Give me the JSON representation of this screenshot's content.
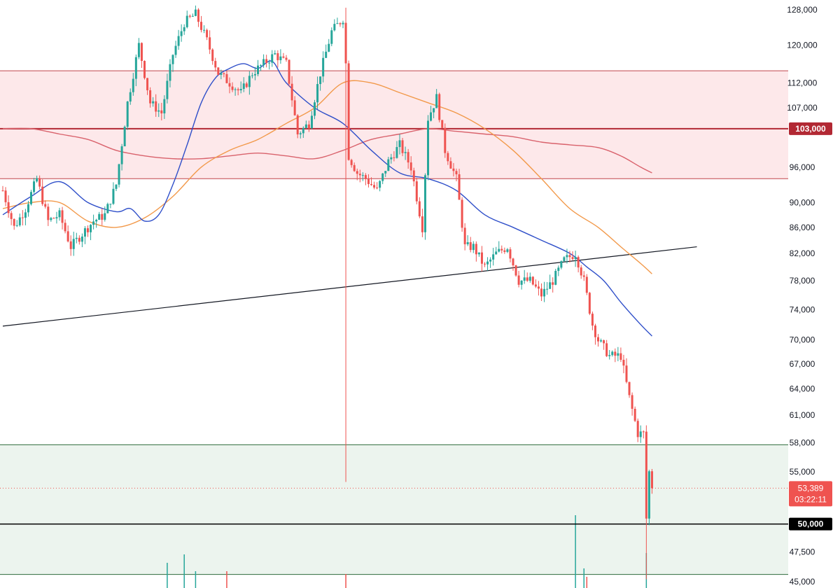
{
  "chart_data": {
    "type": "candlestick",
    "colors": {
      "up": "#26a69a",
      "down": "#ef5350",
      "ma_fast": "#2f4fc9",
      "ma_mid": "#f2994a",
      "ma_slow": "#d9626c",
      "trendline": "#131722",
      "resistance_zone": "#fde8ea",
      "support_zone": "#ecf4ee",
      "resistance_level": "#b22833",
      "support_level": "#000000"
    },
    "y_axis": {
      "scale": "log",
      "range": [
        45000,
        129500
      ],
      "ticks": [
        128000,
        120000,
        112000,
        107000,
        103000,
        96000,
        90000,
        86000,
        82000,
        78000,
        74000,
        70000,
        67000,
        64000,
        61000,
        58000,
        55000,
        50000,
        47500,
        45000
      ],
      "tick_labels": [
        "128,000",
        "120,000",
        "112,000",
        "107,000",
        "103,000",
        "96,000",
        "90,000",
        "86,000",
        "82,000",
        "78,000",
        "74,000",
        "70,000",
        "67,000",
        "64,000",
        "61,000",
        "58,000",
        "55,000",
        "50,000",
        "47,500",
        "45,000"
      ]
    },
    "zones": [
      {
        "kind": "resistance",
        "low": 94000,
        "high": 114500
      },
      {
        "kind": "support",
        "low": 45600,
        "high": 57800
      }
    ],
    "levels": [
      {
        "value": 103000,
        "label": "103,000",
        "kind": "resistance"
      },
      {
        "value": 50000,
        "label": "50,000",
        "kind": "support"
      }
    ],
    "last_price": {
      "value": 53389,
      "label": "53,389",
      "countdown": "03:22:11"
    },
    "trendline": {
      "from_bar": 0,
      "to_bar": 230,
      "from_value": 71800,
      "to_value": 83000
    },
    "ma_fast": [
      [
        0,
        88000
      ],
      [
        10,
        91000
      ],
      [
        20,
        93500
      ],
      [
        30,
        90000
      ],
      [
        40,
        88500
      ],
      [
        45,
        89000
      ],
      [
        50,
        87000
      ],
      [
        55,
        88000
      ],
      [
        60,
        93000
      ],
      [
        65,
        100000
      ],
      [
        70,
        108000
      ],
      [
        75,
        113000
      ],
      [
        80,
        115000
      ],
      [
        85,
        116000
      ],
      [
        90,
        115000
      ],
      [
        95,
        116500
      ],
      [
        100,
        112000
      ],
      [
        110,
        107000
      ],
      [
        120,
        104000
      ],
      [
        130,
        99000
      ],
      [
        140,
        95000
      ],
      [
        150,
        94000
      ],
      [
        160,
        92000
      ],
      [
        170,
        88000
      ],
      [
        180,
        86000
      ],
      [
        190,
        84000
      ],
      [
        200,
        82000
      ],
      [
        206,
        80000
      ],
      [
        212,
        78000
      ],
      [
        218,
        75000
      ],
      [
        225,
        72000
      ],
      [
        229,
        70500
      ]
    ],
    "ma_mid": [
      [
        0,
        89000
      ],
      [
        10,
        90000
      ],
      [
        20,
        90000
      ],
      [
        30,
        87000
      ],
      [
        40,
        86000
      ],
      [
        50,
        87500
      ],
      [
        60,
        91000
      ],
      [
        70,
        96000
      ],
      [
        80,
        99000
      ],
      [
        90,
        101000
      ],
      [
        100,
        104000
      ],
      [
        110,
        107000
      ],
      [
        120,
        112000
      ],
      [
        130,
        112000
      ],
      [
        140,
        110000
      ],
      [
        150,
        108000
      ],
      [
        160,
        106000
      ],
      [
        170,
        103000
      ],
      [
        180,
        99000
      ],
      [
        190,
        94000
      ],
      [
        200,
        89000
      ],
      [
        210,
        86000
      ],
      [
        218,
        83000
      ],
      [
        225,
        80500
      ],
      [
        229,
        79000
      ]
    ],
    "ma_slow": [
      [
        0,
        103000
      ],
      [
        10,
        103000
      ],
      [
        20,
        102000
      ],
      [
        30,
        101000
      ],
      [
        40,
        99000
      ],
      [
        50,
        98000
      ],
      [
        60,
        97500
      ],
      [
        70,
        97500
      ],
      [
        80,
        98000
      ],
      [
        90,
        98500
      ],
      [
        100,
        98000
      ],
      [
        110,
        97500
      ],
      [
        120,
        99000
      ],
      [
        130,
        101000
      ],
      [
        140,
        102000
      ],
      [
        150,
        103000
      ],
      [
        160,
        102500
      ],
      [
        170,
        102000
      ],
      [
        180,
        101500
      ],
      [
        190,
        100500
      ],
      [
        200,
        100000
      ],
      [
        210,
        99500
      ],
      [
        218,
        98000
      ],
      [
        225,
        96000
      ],
      [
        229,
        95000
      ]
    ],
    "volume_spikes": [
      {
        "bar": 58,
        "value": 0.18,
        "dir": "up"
      },
      {
        "bar": 64,
        "value": 0.24,
        "dir": "up"
      },
      {
        "bar": 68,
        "value": 0.12,
        "dir": "up"
      },
      {
        "bar": 79,
        "value": 0.12,
        "dir": "down"
      },
      {
        "bar": 121,
        "value": 0.1,
        "dir": "down"
      },
      {
        "bar": 202,
        "value": 0.52,
        "dir": "up"
      },
      {
        "bar": 205,
        "value": 0.14,
        "dir": "up"
      },
      {
        "bar": 206,
        "value": 0.08,
        "dir": "down"
      },
      {
        "bar": 227,
        "value": 0.25,
        "dir": "up"
      }
    ],
    "price_knots": [
      [
        0,
        92000
      ],
      [
        4,
        86000
      ],
      [
        8,
        89000
      ],
      [
        12,
        94000
      ],
      [
        16,
        87000
      ],
      [
        20,
        88000
      ],
      [
        24,
        83000
      ],
      [
        28,
        85000
      ],
      [
        32,
        87000
      ],
      [
        36,
        88000
      ],
      [
        40,
        93000
      ],
      [
        44,
        108000
      ],
      [
        48,
        120000
      ],
      [
        52,
        108000
      ],
      [
        56,
        106000
      ],
      [
        60,
        118000
      ],
      [
        64,
        125000
      ],
      [
        68,
        127000
      ],
      [
        72,
        121000
      ],
      [
        76,
        114000
      ],
      [
        80,
        112000
      ],
      [
        84,
        110000
      ],
      [
        88,
        114000
      ],
      [
        92,
        116000
      ],
      [
        96,
        118000
      ],
      [
        100,
        116000
      ],
      [
        104,
        102000
      ],
      [
        108,
        104000
      ],
      [
        112,
        114000
      ],
      [
        116,
        123000
      ],
      [
        120,
        126000
      ],
      [
        121,
        116000
      ],
      [
        122,
        98000
      ],
      [
        125,
        95000
      ],
      [
        128,
        94000
      ],
      [
        132,
        92000
      ],
      [
        136,
        97000
      ],
      [
        140,
        100000
      ],
      [
        144,
        96000
      ],
      [
        148,
        86000
      ],
      [
        150,
        105000
      ],
      [
        153,
        109000
      ],
      [
        156,
        99000
      ],
      [
        160,
        94000
      ],
      [
        163,
        83000
      ],
      [
        166,
        83000
      ],
      [
        170,
        80000
      ],
      [
        174,
        82000
      ],
      [
        178,
        83000
      ],
      [
        182,
        78000
      ],
      [
        186,
        78000
      ],
      [
        190,
        76000
      ],
      [
        194,
        78000
      ],
      [
        198,
        81000
      ],
      [
        202,
        82000
      ],
      [
        205,
        78000
      ],
      [
        208,
        72000
      ],
      [
        210,
        70000
      ],
      [
        214,
        68000
      ],
      [
        218,
        68000
      ],
      [
        221,
        63000
      ],
      [
        224,
        59000
      ],
      [
        226,
        59000
      ],
      [
        227,
        50500
      ],
      [
        228,
        55000
      ],
      [
        229,
        53389
      ]
    ]
  }
}
